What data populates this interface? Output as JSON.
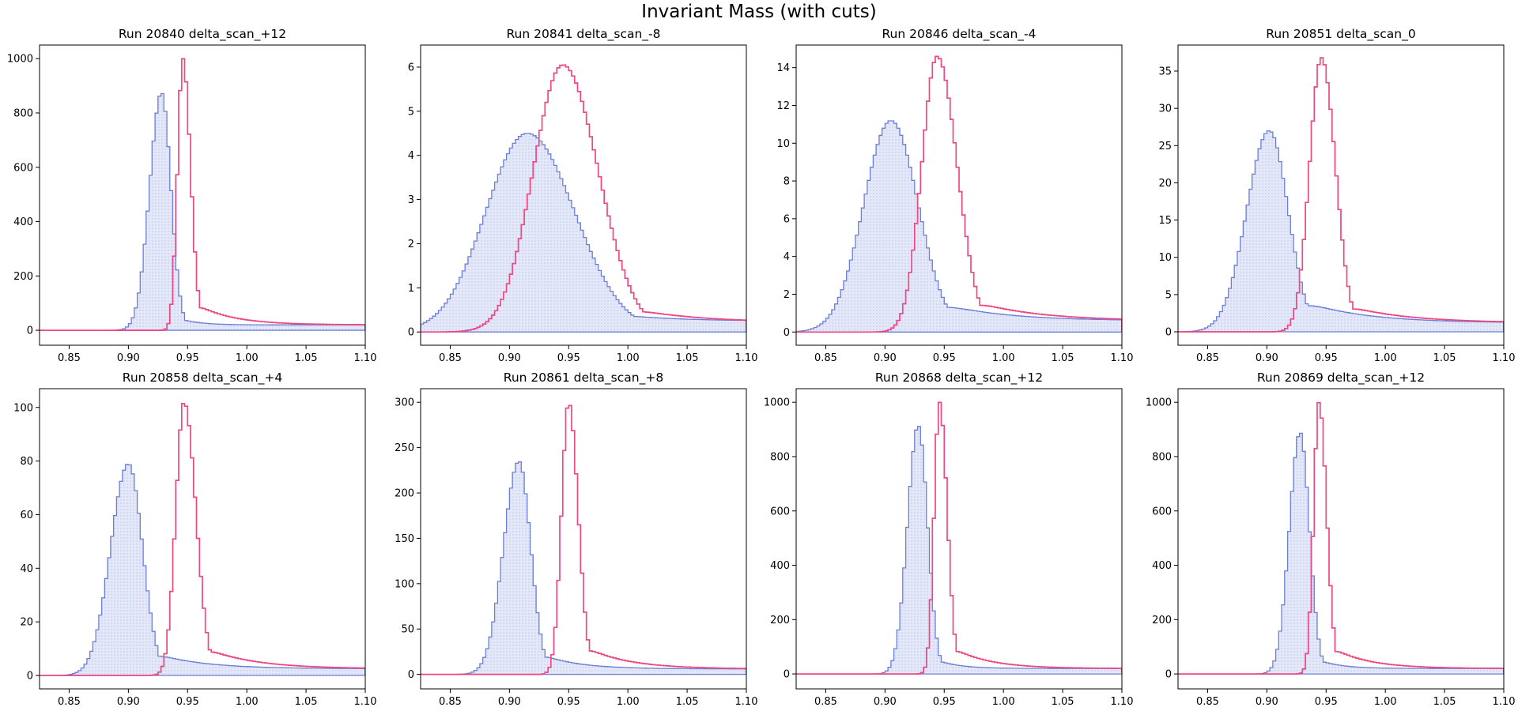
{
  "figure": {
    "title": "Invariant Mass (with cuts)"
  },
  "colors": {
    "blue_edge": "#6b7fd7",
    "blue_fill": "#e4e8f8",
    "blue_dot": "#8f9fe0",
    "red": "#ee4782",
    "frame": "#000000"
  },
  "shared_x": {
    "xlim": [
      0.825,
      1.1
    ],
    "ticks": [
      0.85,
      0.9,
      0.95,
      1.0,
      1.05,
      1.1
    ],
    "tick_labels": [
      "0.85",
      "0.90",
      "0.95",
      "1.00",
      "1.05",
      "1.10"
    ]
  },
  "chart_data": [
    {
      "type": "histogram",
      "title": "Run 20840 delta_scan_+12",
      "ylim": [
        -55,
        1050
      ],
      "yticks": [
        0,
        200,
        400,
        600,
        800,
        1000
      ],
      "ytick_labels": [
        "0",
        "200",
        "400",
        "600",
        "800",
        "1000"
      ],
      "series": [
        {
          "peak_x": 0.928,
          "peak_y": 875,
          "sigma_left": 0.01,
          "sigma_right": 0.008,
          "tail_y": 60,
          "tail_decay": 0.015,
          "end_y": 20
        },
        {
          "peak_x": 0.946,
          "peak_y": 1000,
          "sigma_left": 0.0045,
          "sigma_right": 0.0065,
          "tail_y": 110,
          "tail_decay": 0.03,
          "end_y": 20
        }
      ]
    },
    {
      "type": "histogram",
      "title": "Run 20841 delta_scan_-8",
      "ylim": [
        -0.3,
        6.5
      ],
      "yticks": [
        0,
        1,
        2,
        3,
        4,
        5,
        6
      ],
      "ytick_labels": [
        "0",
        "1",
        "2",
        "3",
        "4",
        "5",
        "6"
      ],
      "series": [
        {
          "peak_x": 0.915,
          "peak_y": 4.5,
          "sigma_left": 0.035,
          "sigma_right": 0.04,
          "tail_y": 0.7,
          "tail_decay": 0.04,
          "end_y": 0.25
        },
        {
          "peak_x": 0.945,
          "peak_y": 6.05,
          "sigma_left": 0.025,
          "sigma_right": 0.03,
          "tail_y": 0.8,
          "tail_decay": 0.05,
          "end_y": 0.22
        }
      ]
    },
    {
      "type": "histogram",
      "title": "Run 20846 delta_scan_-4",
      "ylim": [
        -0.7,
        15.2
      ],
      "yticks": [
        0,
        2,
        4,
        6,
        8,
        10,
        12,
        14
      ],
      "ytick_labels": [
        "0",
        "2",
        "4",
        "6",
        "8",
        "10",
        "12",
        "14"
      ],
      "series": [
        {
          "peak_x": 0.905,
          "peak_y": 11.2,
          "sigma_left": 0.023,
          "sigma_right": 0.023,
          "tail_y": 2.0,
          "tail_decay": 0.05,
          "end_y": 0.6
        },
        {
          "peak_x": 0.944,
          "peak_y": 14.6,
          "sigma_left": 0.013,
          "sigma_right": 0.017,
          "tail_y": 2.0,
          "tail_decay": 0.05,
          "end_y": 0.6
        }
      ]
    },
    {
      "type": "histogram",
      "title": "Run 20851 delta_scan_0",
      "ylim": [
        -1.8,
        38.5
      ],
      "yticks": [
        0,
        5,
        10,
        15,
        20,
        25,
        30,
        35
      ],
      "ytick_labels": [
        "0",
        "5",
        "10",
        "15",
        "20",
        "25",
        "30",
        "35"
      ],
      "series": [
        {
          "peak_x": 0.902,
          "peak_y": 27,
          "sigma_left": 0.019,
          "sigma_right": 0.016,
          "tail_y": 5,
          "tail_decay": 0.05,
          "end_y": 1.2
        },
        {
          "peak_x": 0.946,
          "peak_y": 36.8,
          "sigma_left": 0.01,
          "sigma_right": 0.012,
          "tail_y": 4,
          "tail_decay": 0.05,
          "end_y": 1.2
        }
      ]
    },
    {
      "type": "histogram",
      "title": "Run 20858 delta_scan_+4",
      "ylim": [
        -5,
        107
      ],
      "yticks": [
        0,
        20,
        40,
        60,
        80,
        100
      ],
      "ytick_labels": [
        "0",
        "20",
        "40",
        "60",
        "80",
        "100"
      ],
      "series": [
        {
          "peak_x": 0.9,
          "peak_y": 79,
          "sigma_left": 0.015,
          "sigma_right": 0.012,
          "tail_y": 10,
          "tail_decay": 0.04,
          "end_y": 2.5
        },
        {
          "peak_x": 0.947,
          "peak_y": 102,
          "sigma_left": 0.007,
          "sigma_right": 0.01,
          "tail_y": 12,
          "tail_decay": 0.04,
          "end_y": 2.5
        }
      ]
    },
    {
      "type": "histogram",
      "title": "Run 20861 delta_scan_+8",
      "ylim": [
        -16,
        315
      ],
      "yticks": [
        0,
        50,
        100,
        150,
        200,
        250,
        300
      ],
      "ytick_labels": [
        "0",
        "50",
        "100",
        "150",
        "200",
        "250",
        "300"
      ],
      "series": [
        {
          "peak_x": 0.908,
          "peak_y": 235,
          "sigma_left": 0.013,
          "sigma_right": 0.01,
          "tail_y": 28,
          "tail_decay": 0.03,
          "end_y": 6
        },
        {
          "peak_x": 0.95,
          "peak_y": 300,
          "sigma_left": 0.006,
          "sigma_right": 0.008,
          "tail_y": 35,
          "tail_decay": 0.035,
          "end_y": 6
        }
      ]
    },
    {
      "type": "histogram",
      "title": "Run 20868 delta_scan_+12",
      "ylim": [
        -55,
        1050
      ],
      "yticks": [
        0,
        200,
        400,
        600,
        800,
        1000
      ],
      "ytick_labels": [
        "0",
        "200",
        "400",
        "600",
        "800",
        "1000"
      ],
      "series": [
        {
          "peak_x": 0.928,
          "peak_y": 915,
          "sigma_left": 0.009,
          "sigma_right": 0.008,
          "tail_y": 70,
          "tail_decay": 0.018,
          "end_y": 20
        },
        {
          "peak_x": 0.946,
          "peak_y": 1000,
          "sigma_left": 0.0045,
          "sigma_right": 0.0065,
          "tail_y": 110,
          "tail_decay": 0.03,
          "end_y": 20
        }
      ]
    },
    {
      "type": "histogram",
      "title": "Run 20869 delta_scan_+12",
      "ylim": [
        -55,
        1050
      ],
      "yticks": [
        0,
        200,
        400,
        600,
        800,
        1000
      ],
      "ytick_labels": [
        "0",
        "200",
        "400",
        "600",
        "800",
        "1000"
      ],
      "series": [
        {
          "peak_x": 0.928,
          "peak_y": 890,
          "sigma_left": 0.009,
          "sigma_right": 0.008,
          "tail_y": 70,
          "tail_decay": 0.018,
          "end_y": 20
        },
        {
          "peak_x": 0.944,
          "peak_y": 1000,
          "sigma_left": 0.0045,
          "sigma_right": 0.0065,
          "tail_y": 110,
          "tail_decay": 0.03,
          "end_y": 20
        }
      ]
    }
  ]
}
